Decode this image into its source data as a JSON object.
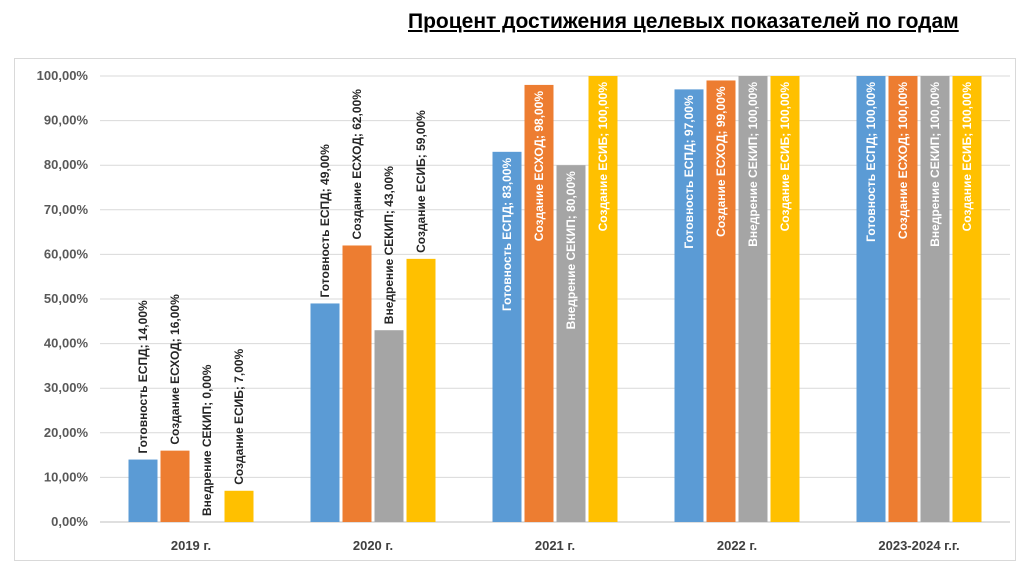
{
  "chart_data": {
    "type": "bar",
    "title": "Процент достижения целевых показателей по годам",
    "categories": [
      "2019 г.",
      "2020 г.",
      "2021 г.",
      "2022 г.",
      "2023-2024 г.г."
    ],
    "series": [
      {
        "name": "Готовность ЕСПД",
        "color": "#5b9bd5",
        "values": [
          14,
          49,
          83,
          97,
          100
        ],
        "labels": [
          "Готовность ЕСПД; 14,00%",
          "Готовность ЕСПД; 49,00%",
          "Готовность ЕСПД; 83,00%",
          "Готовность ЕСПД; 97,00%",
          "Готовность ЕСПД; 100,00%"
        ]
      },
      {
        "name": "Создание ЕСХОД",
        "color": "#ed7d31",
        "values": [
          16,
          62,
          98,
          99,
          100
        ],
        "labels": [
          "Создание ЕСХОД; 16,00%",
          "Создание ЕСХОД; 62,00%",
          "Создание ЕСХОД; 98,00%",
          "Создание ЕСХОД; 99,00%",
          "Создание ЕСХОД; 100,00%"
        ]
      },
      {
        "name": "Внедрение СЕКИП",
        "color": "#a5a5a5",
        "values": [
          0,
          43,
          80,
          100,
          100
        ],
        "labels": [
          "Внедрение СЕКИП; 0,00%",
          "Внедрение СЕКИП; 43,00%",
          "Внедрение СЕКИП; 80,00%",
          "Внедрение СЕКИП; 100,00%",
          "Внедрение СЕКИП; 100,00%"
        ]
      },
      {
        "name": "Создание ЕСИБ",
        "color": "#ffc000",
        "values": [
          7,
          59,
          100,
          100,
          100
        ],
        "labels": [
          "Создание ЕСИБ; 7,00%",
          "Создание ЕСИБ; 59,00%",
          "Создание ЕСИБ; 100,00%",
          "Создание ЕСИБ; 100,00%",
          "Создание ЕСИБ; 100,00%"
        ]
      }
    ],
    "y_ticks": [
      0,
      10,
      20,
      30,
      40,
      50,
      60,
      70,
      80,
      90,
      100
    ],
    "y_tick_labels": [
      "0,00%",
      "10,00%",
      "20,00%",
      "30,00%",
      "40,00%",
      "50,00%",
      "60,00%",
      "70,00%",
      "80,00%",
      "90,00%",
      "100,00%"
    ],
    "ylim": [
      0,
      100
    ],
    "grid": true,
    "xlabel": "",
    "ylabel": ""
  }
}
